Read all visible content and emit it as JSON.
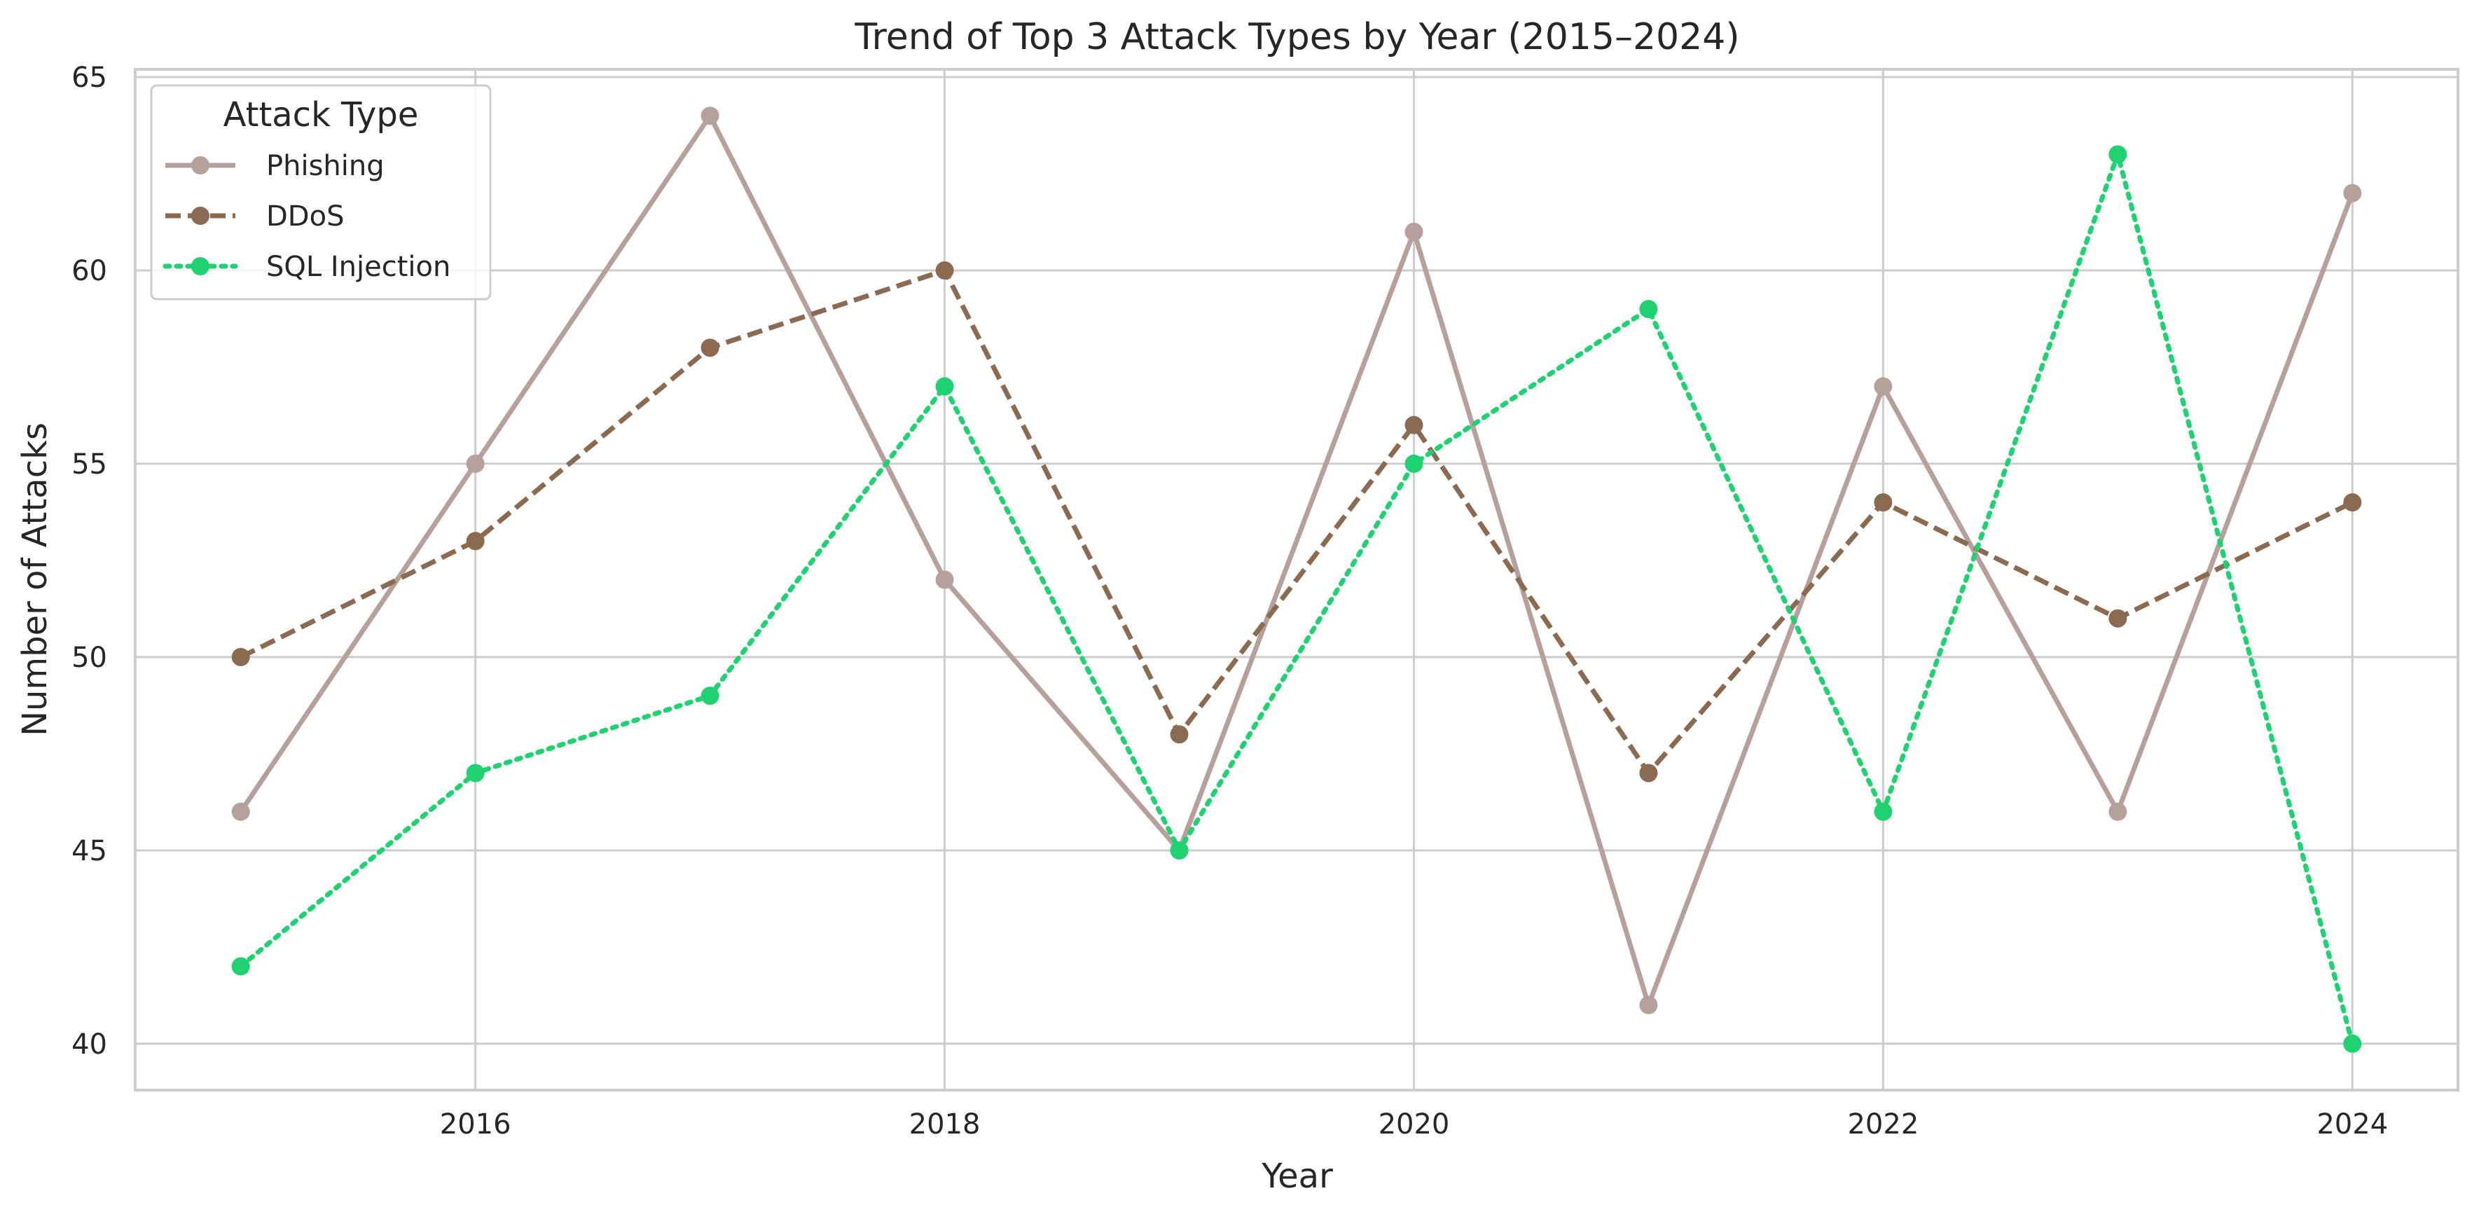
{
  "chart_data": {
    "type": "line",
    "title": "Trend of Top 3 Attack Types by Year (2015–2024)",
    "xlabel": "Year",
    "ylabel": "Number of Attacks",
    "x": [
      2015,
      2016,
      2017,
      2018,
      2019,
      2020,
      2021,
      2022,
      2023,
      2024
    ],
    "xlim": [
      2014.55,
      2024.45
    ],
    "ylim": [
      38.8,
      65.2
    ],
    "xticks": [
      2016,
      2018,
      2020,
      2022,
      2024
    ],
    "yticks": [
      40,
      45,
      50,
      55,
      60,
      65
    ],
    "grid": true,
    "legend": {
      "title": "Attack Type",
      "position": "top-left"
    },
    "series": [
      {
        "name": "Phishing",
        "color": "#b5a09b",
        "line_style": "solid",
        "marker": "circle",
        "values": [
          46,
          55,
          64,
          52,
          45,
          61,
          41,
          57,
          46,
          62
        ]
      },
      {
        "name": "DDoS",
        "color": "#8b6a52",
        "line_style": "dashed",
        "marker": "circle",
        "values": [
          50,
          53,
          58,
          60,
          48,
          56,
          47,
          54,
          51,
          54
        ]
      },
      {
        "name": "SQL Injection",
        "color": "#1fd171",
        "line_style": "dotted",
        "marker": "circle",
        "values": [
          42,
          47,
          49,
          57,
          45,
          55,
          59,
          46,
          63,
          40
        ]
      }
    ]
  }
}
